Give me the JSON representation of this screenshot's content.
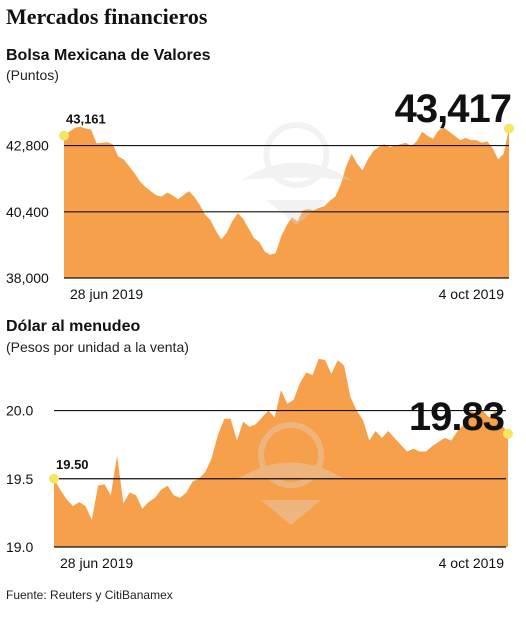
{
  "header": {
    "title": "Mercados financieros",
    "source": "Fuente: Reuters y CitiBanamex"
  },
  "colors": {
    "area": "#f7a04b",
    "marker": "#f7e663",
    "grid": "#111111",
    "watermark": "#dcdcdc"
  },
  "chart_data": [
    {
      "type": "area",
      "title": "Bolsa Mexicana de Valores",
      "subtitle": "(Puntos)",
      "ylim": [
        38000,
        43800
      ],
      "yticks": [
        38000,
        40400,
        42800
      ],
      "ytick_labels": [
        "38,000",
        "40,400",
        "42,800"
      ],
      "x_start_label": "28 jun 2019",
      "x_end_label": "4 oct 2019",
      "start_value_label": "43,161",
      "end_value_label": "43,417",
      "grid": true,
      "series": [
        {
          "values": [
            43161,
            43300,
            43450,
            43480,
            43420,
            43380,
            42880,
            42900,
            42920,
            42850,
            42400,
            42300,
            42050,
            41800,
            41500,
            41300,
            41150,
            41000,
            40950,
            41100,
            41000,
            40850,
            41000,
            41150,
            40950,
            40650,
            40300,
            40100,
            39700,
            39400,
            39650,
            40050,
            40350,
            40150,
            39800,
            39450,
            39300,
            38950,
            38850,
            38900,
            39500,
            39900,
            40200,
            40050,
            40450,
            40500,
            40450,
            40550,
            40600,
            40800,
            40950,
            41400,
            42050,
            42500,
            42150,
            41900,
            42300,
            42600,
            42750,
            42850,
            42750,
            42800,
            42850,
            42900,
            42780,
            42950,
            43300,
            43150,
            43050,
            43350,
            43450,
            43300,
            43150,
            43000,
            43080,
            43000,
            43000,
            42900,
            42950,
            42700,
            42300,
            42500,
            43417
          ]
        }
      ]
    },
    {
      "type": "area",
      "title": "Dólar al menudeo",
      "subtitle": "(Pesos por unidad a la venta)",
      "ylim": [
        19.0,
        20.4
      ],
      "yticks": [
        19.0,
        19.5,
        20.0
      ],
      "ytick_labels": [
        "19.0",
        "19.5",
        "20.0"
      ],
      "x_start_label": "28 jun 2019",
      "x_end_label": "4 oct 2019",
      "start_value_label": "19.50",
      "end_value_label": "19.83",
      "grid": true,
      "series": [
        {
          "values": [
            19.5,
            19.42,
            19.35,
            19.3,
            19.33,
            19.3,
            19.2,
            19.45,
            19.46,
            19.38,
            19.67,
            19.32,
            19.4,
            19.38,
            19.28,
            19.33,
            19.36,
            19.42,
            19.45,
            19.38,
            19.36,
            19.4,
            19.48,
            19.5,
            19.55,
            19.65,
            19.82,
            19.94,
            19.94,
            19.78,
            19.92,
            19.88,
            19.9,
            19.95,
            20.0,
            19.95,
            20.15,
            20.05,
            20.08,
            20.2,
            20.28,
            20.26,
            20.38,
            20.37,
            20.27,
            20.37,
            20.33,
            20.1,
            20.0,
            19.93,
            19.78,
            19.85,
            19.8,
            19.85,
            19.8,
            19.75,
            19.7,
            19.72,
            19.7,
            19.7,
            19.74,
            19.77,
            19.8,
            19.78,
            19.85,
            19.9,
            20.0,
            19.98,
            20.0,
            19.95,
            20.0,
            19.9,
            19.83
          ]
        }
      ]
    }
  ]
}
